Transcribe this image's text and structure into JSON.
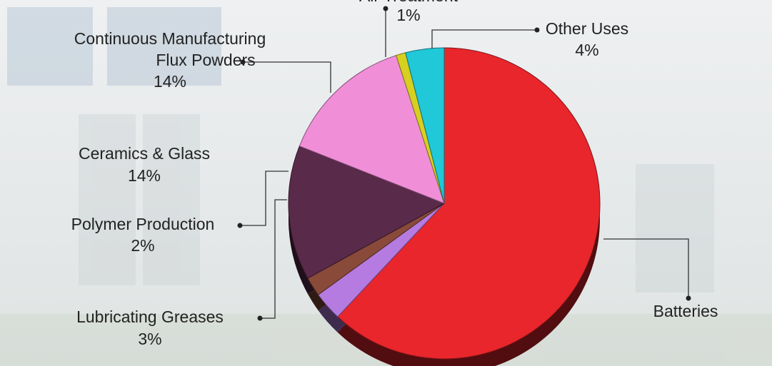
{
  "chart_data": {
    "type": "pie",
    "categories": [
      "Batteries",
      "Lubricating Greases",
      "Polymer Production",
      "Ceramics & Glass",
      "Continuous Manufacturing Flux Powders",
      "Air Treatment",
      "Other Uses"
    ],
    "values": [
      62,
      3,
      2,
      14,
      14,
      1,
      4
    ],
    "value_labels": [
      null,
      "3%",
      "2%",
      "14%",
      "14%",
      "1%",
      "4%"
    ],
    "colors": [
      "#e8262c",
      "#b57be0",
      "#8a4a3a",
      "#5a2a4a",
      "#f08fd8",
      "#d8d020",
      "#20c8d8"
    ]
  }
}
